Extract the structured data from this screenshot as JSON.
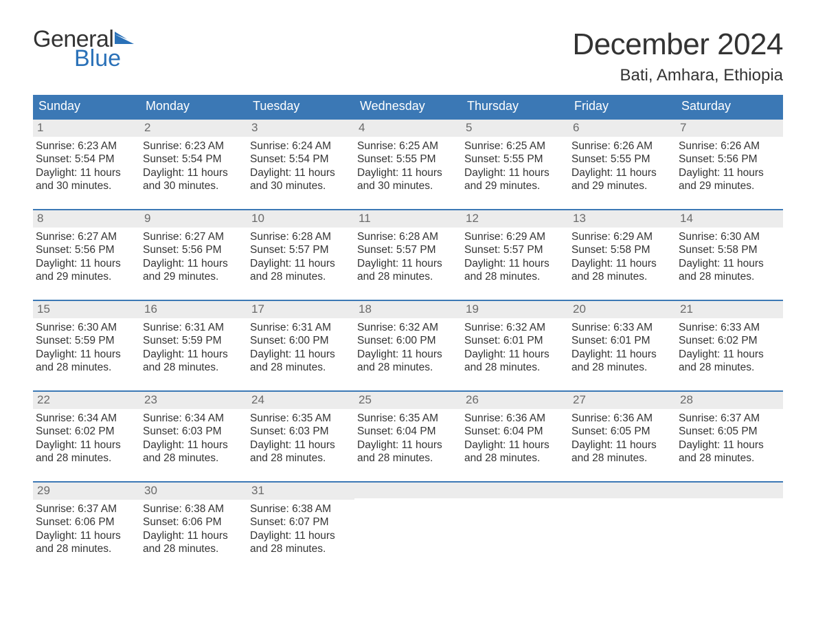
{
  "logo": {
    "word1": "General",
    "word2": "Blue",
    "flag_color": "#2a71b8",
    "text_color": "#333333"
  },
  "title": "December 2024",
  "location": "Bati, Amhara, Ethiopia",
  "colors": {
    "header_bg": "#3b78b5",
    "header_text": "#ffffff",
    "week_border": "#3b78b5",
    "daynum_bg": "#ececec",
    "daynum_text": "#6a6a6a",
    "body_text": "#333333",
    "page_bg": "#ffffff"
  },
  "fonts": {
    "title_size_pt": 33,
    "location_size_pt": 18,
    "dow_size_pt": 14,
    "daynum_size_pt": 13,
    "body_size_pt": 12
  },
  "days_of_week": [
    "Sunday",
    "Monday",
    "Tuesday",
    "Wednesday",
    "Thursday",
    "Friday",
    "Saturday"
  ],
  "labels": {
    "sunrise": "Sunrise:",
    "sunset": "Sunset:",
    "daylight": "Daylight:"
  },
  "weeks": [
    [
      {
        "n": "1",
        "sunrise": "6:23 AM",
        "sunset": "5:54 PM",
        "daylight_l1": "11 hours",
        "daylight_l2": "and 30 minutes."
      },
      {
        "n": "2",
        "sunrise": "6:23 AM",
        "sunset": "5:54 PM",
        "daylight_l1": "11 hours",
        "daylight_l2": "and 30 minutes."
      },
      {
        "n": "3",
        "sunrise": "6:24 AM",
        "sunset": "5:54 PM",
        "daylight_l1": "11 hours",
        "daylight_l2": "and 30 minutes."
      },
      {
        "n": "4",
        "sunrise": "6:25 AM",
        "sunset": "5:55 PM",
        "daylight_l1": "11 hours",
        "daylight_l2": "and 30 minutes."
      },
      {
        "n": "5",
        "sunrise": "6:25 AM",
        "sunset": "5:55 PM",
        "daylight_l1": "11 hours",
        "daylight_l2": "and 29 minutes."
      },
      {
        "n": "6",
        "sunrise": "6:26 AM",
        "sunset": "5:55 PM",
        "daylight_l1": "11 hours",
        "daylight_l2": "and 29 minutes."
      },
      {
        "n": "7",
        "sunrise": "6:26 AM",
        "sunset": "5:56 PM",
        "daylight_l1": "11 hours",
        "daylight_l2": "and 29 minutes."
      }
    ],
    [
      {
        "n": "8",
        "sunrise": "6:27 AM",
        "sunset": "5:56 PM",
        "daylight_l1": "11 hours",
        "daylight_l2": "and 29 minutes."
      },
      {
        "n": "9",
        "sunrise": "6:27 AM",
        "sunset": "5:56 PM",
        "daylight_l1": "11 hours",
        "daylight_l2": "and 29 minutes."
      },
      {
        "n": "10",
        "sunrise": "6:28 AM",
        "sunset": "5:57 PM",
        "daylight_l1": "11 hours",
        "daylight_l2": "and 28 minutes."
      },
      {
        "n": "11",
        "sunrise": "6:28 AM",
        "sunset": "5:57 PM",
        "daylight_l1": "11 hours",
        "daylight_l2": "and 28 minutes."
      },
      {
        "n": "12",
        "sunrise": "6:29 AM",
        "sunset": "5:57 PM",
        "daylight_l1": "11 hours",
        "daylight_l2": "and 28 minutes."
      },
      {
        "n": "13",
        "sunrise": "6:29 AM",
        "sunset": "5:58 PM",
        "daylight_l1": "11 hours",
        "daylight_l2": "and 28 minutes."
      },
      {
        "n": "14",
        "sunrise": "6:30 AM",
        "sunset": "5:58 PM",
        "daylight_l1": "11 hours",
        "daylight_l2": "and 28 minutes."
      }
    ],
    [
      {
        "n": "15",
        "sunrise": "6:30 AM",
        "sunset": "5:59 PM",
        "daylight_l1": "11 hours",
        "daylight_l2": "and 28 minutes."
      },
      {
        "n": "16",
        "sunrise": "6:31 AM",
        "sunset": "5:59 PM",
        "daylight_l1": "11 hours",
        "daylight_l2": "and 28 minutes."
      },
      {
        "n": "17",
        "sunrise": "6:31 AM",
        "sunset": "6:00 PM",
        "daylight_l1": "11 hours",
        "daylight_l2": "and 28 minutes."
      },
      {
        "n": "18",
        "sunrise": "6:32 AM",
        "sunset": "6:00 PM",
        "daylight_l1": "11 hours",
        "daylight_l2": "and 28 minutes."
      },
      {
        "n": "19",
        "sunrise": "6:32 AM",
        "sunset": "6:01 PM",
        "daylight_l1": "11 hours",
        "daylight_l2": "and 28 minutes."
      },
      {
        "n": "20",
        "sunrise": "6:33 AM",
        "sunset": "6:01 PM",
        "daylight_l1": "11 hours",
        "daylight_l2": "and 28 minutes."
      },
      {
        "n": "21",
        "sunrise": "6:33 AM",
        "sunset": "6:02 PM",
        "daylight_l1": "11 hours",
        "daylight_l2": "and 28 minutes."
      }
    ],
    [
      {
        "n": "22",
        "sunrise": "6:34 AM",
        "sunset": "6:02 PM",
        "daylight_l1": "11 hours",
        "daylight_l2": "and 28 minutes."
      },
      {
        "n": "23",
        "sunrise": "6:34 AM",
        "sunset": "6:03 PM",
        "daylight_l1": "11 hours",
        "daylight_l2": "and 28 minutes."
      },
      {
        "n": "24",
        "sunrise": "6:35 AM",
        "sunset": "6:03 PM",
        "daylight_l1": "11 hours",
        "daylight_l2": "and 28 minutes."
      },
      {
        "n": "25",
        "sunrise": "6:35 AM",
        "sunset": "6:04 PM",
        "daylight_l1": "11 hours",
        "daylight_l2": "and 28 minutes."
      },
      {
        "n": "26",
        "sunrise": "6:36 AM",
        "sunset": "6:04 PM",
        "daylight_l1": "11 hours",
        "daylight_l2": "and 28 minutes."
      },
      {
        "n": "27",
        "sunrise": "6:36 AM",
        "sunset": "6:05 PM",
        "daylight_l1": "11 hours",
        "daylight_l2": "and 28 minutes."
      },
      {
        "n": "28",
        "sunrise": "6:37 AM",
        "sunset": "6:05 PM",
        "daylight_l1": "11 hours",
        "daylight_l2": "and 28 minutes."
      }
    ],
    [
      {
        "n": "29",
        "sunrise": "6:37 AM",
        "sunset": "6:06 PM",
        "daylight_l1": "11 hours",
        "daylight_l2": "and 28 minutes."
      },
      {
        "n": "30",
        "sunrise": "6:38 AM",
        "sunset": "6:06 PM",
        "daylight_l1": "11 hours",
        "daylight_l2": "and 28 minutes."
      },
      {
        "n": "31",
        "sunrise": "6:38 AM",
        "sunset": "6:07 PM",
        "daylight_l1": "11 hours",
        "daylight_l2": "and 28 minutes."
      },
      null,
      null,
      null,
      null
    ]
  ]
}
